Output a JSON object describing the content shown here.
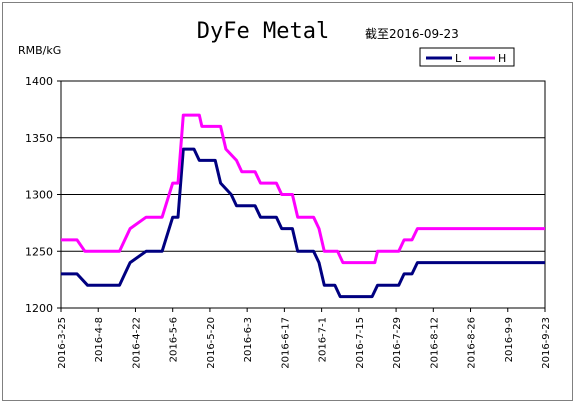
{
  "chart_data": {
    "type": "line",
    "title": "DyFe Metal",
    "subtitle": "截至2016-09-23",
    "ylabel": "RMB/kG",
    "xlabel": "",
    "ylim": [
      1200,
      1400
    ],
    "yticks": [
      "1200",
      "1250",
      "1300",
      "1350",
      "1400"
    ],
    "xlim": [
      "2016-03-25",
      "2016-09-23"
    ],
    "xticks": [
      "2016-3-25",
      "2016-4-8",
      "2016-4-22",
      "2016-5-6",
      "2016-5-20",
      "2016-6-3",
      "2016-6-17",
      "2016-7-1",
      "2016-7-15",
      "2016-7-29",
      "2016-8-12",
      "2016-8-26",
      "2016-9-9",
      "2016-9-23"
    ],
    "grid": "horizontal",
    "legend_position": "top-right",
    "series": [
      {
        "name": "L",
        "color": "#000080",
        "points": [
          [
            "2016-03-25",
            1230
          ],
          [
            "2016-03-31",
            1230
          ],
          [
            "2016-04-04",
            1220
          ],
          [
            "2016-04-16",
            1220
          ],
          [
            "2016-04-18",
            1230
          ],
          [
            "2016-04-20",
            1240
          ],
          [
            "2016-04-26",
            1250
          ],
          [
            "2016-05-02",
            1250
          ],
          [
            "2016-05-06",
            1280
          ],
          [
            "2016-05-08",
            1280
          ],
          [
            "2016-05-10",
            1340
          ],
          [
            "2016-05-14",
            1340
          ],
          [
            "2016-05-16",
            1330
          ],
          [
            "2016-05-22",
            1330
          ],
          [
            "2016-05-24",
            1310
          ],
          [
            "2016-05-28",
            1300
          ],
          [
            "2016-05-30",
            1290
          ],
          [
            "2016-06-06",
            1290
          ],
          [
            "2016-06-08",
            1280
          ],
          [
            "2016-06-14",
            1280
          ],
          [
            "2016-06-16",
            1270
          ],
          [
            "2016-06-20",
            1270
          ],
          [
            "2016-06-22",
            1250
          ],
          [
            "2016-06-28",
            1250
          ],
          [
            "2016-06-30",
            1240
          ],
          [
            "2016-07-02",
            1220
          ],
          [
            "2016-07-06",
            1220
          ],
          [
            "2016-07-08",
            1210
          ],
          [
            "2016-07-20",
            1210
          ],
          [
            "2016-07-22",
            1220
          ],
          [
            "2016-07-30",
            1220
          ],
          [
            "2016-08-01",
            1230
          ],
          [
            "2016-08-04",
            1230
          ],
          [
            "2016-08-06",
            1240
          ],
          [
            "2016-09-23",
            1240
          ]
        ]
      },
      {
        "name": "H",
        "color": "#ff00ff",
        "points": [
          [
            "2016-03-25",
            1260
          ],
          [
            "2016-03-31",
            1260
          ],
          [
            "2016-04-03",
            1250
          ],
          [
            "2016-04-16",
            1250
          ],
          [
            "2016-04-18",
            1260
          ],
          [
            "2016-04-20",
            1270
          ],
          [
            "2016-04-26",
            1280
          ],
          [
            "2016-05-02",
            1280
          ],
          [
            "2016-05-06",
            1310
          ],
          [
            "2016-05-08",
            1310
          ],
          [
            "2016-05-10",
            1370
          ],
          [
            "2016-05-16",
            1370
          ],
          [
            "2016-05-17",
            1360
          ],
          [
            "2016-05-24",
            1360
          ],
          [
            "2016-05-26",
            1340
          ],
          [
            "2016-05-30",
            1330
          ],
          [
            "2016-06-01",
            1320
          ],
          [
            "2016-06-06",
            1320
          ],
          [
            "2016-06-08",
            1310
          ],
          [
            "2016-06-14",
            1310
          ],
          [
            "2016-06-16",
            1300
          ],
          [
            "2016-06-20",
            1300
          ],
          [
            "2016-06-22",
            1280
          ],
          [
            "2016-06-28",
            1280
          ],
          [
            "2016-06-30",
            1270
          ],
          [
            "2016-07-02",
            1250
          ],
          [
            "2016-07-07",
            1250
          ],
          [
            "2016-07-09",
            1240
          ],
          [
            "2016-07-21",
            1240
          ],
          [
            "2016-07-22",
            1250
          ],
          [
            "2016-07-30",
            1250
          ],
          [
            "2016-08-01",
            1260
          ],
          [
            "2016-08-04",
            1260
          ],
          [
            "2016-08-06",
            1270
          ],
          [
            "2016-09-23",
            1270
          ]
        ]
      }
    ]
  }
}
